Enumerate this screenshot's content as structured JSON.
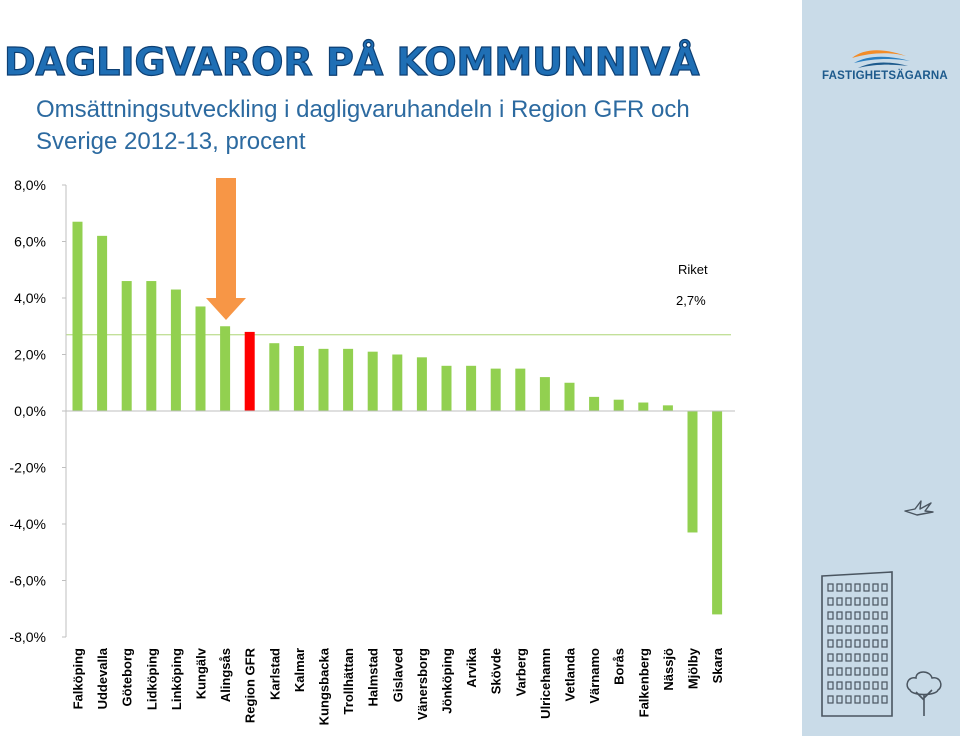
{
  "header": {
    "title": "DAGLIGVAROR PÅ KOMMUNNIVÅ",
    "subtitle": "Omsättningsutveckling i dagligvaruhandeln i Region GFR och Sverige 2012-13, procent"
  },
  "brand": {
    "name": "FASTIGHETSÄGARNA",
    "logo_icon": "wave-logo-icon"
  },
  "decor": [
    "bird-icon",
    "building-icon",
    "tree-icon"
  ],
  "colors": {
    "bar": "#92d050",
    "highlight": "#ff0000",
    "arrow": "#f79646",
    "reference_line": "#c3e09a",
    "panel": "#c9dbe8",
    "title": "#1f6fb5",
    "subtitle": "#2c6aa0"
  },
  "chart_data": {
    "type": "bar",
    "categories": [
      "Falköping",
      "Uddevalla",
      "Göteborg",
      "Lidköping",
      "Linköping",
      "Kungälv",
      "Alingsås",
      "Region GFR",
      "Karlstad",
      "Kalmar",
      "Kungsbacka",
      "Trollhättan",
      "Halmstad",
      "Gislaved",
      "Vänersborg",
      "Jönköping",
      "Arvika",
      "Skövde",
      "Varberg",
      "Ulricehamn",
      "Vetlanda",
      "Värnamo",
      "Borås",
      "Falkenberg",
      "Nässjö",
      "Mjölby",
      "Skara"
    ],
    "values": [
      6.7,
      6.2,
      4.6,
      4.6,
      4.3,
      3.7,
      3.0,
      2.8,
      2.4,
      2.3,
      2.2,
      2.2,
      2.1,
      2.0,
      1.9,
      1.6,
      1.6,
      1.5,
      1.5,
      1.2,
      1.0,
      0.5,
      0.4,
      0.3,
      0.2,
      -4.3,
      -7.2
    ],
    "highlight_category": "Region GFR",
    "reference": {
      "label": "Riket",
      "value_label": "2,7%",
      "value": 2.7
    },
    "ylim": [
      -8.0,
      8.0
    ],
    "yticks": [
      8.0,
      6.0,
      4.0,
      2.0,
      0.0,
      -2.0,
      -4.0,
      -6.0,
      -8.0
    ],
    "ytick_labels": [
      "8,0%",
      "6,0%",
      "4,0%",
      "2,0%",
      "0,0%",
      "-2,0%",
      "-4,0%",
      "-6,0%",
      "-8,0%"
    ],
    "xlabel": "",
    "ylabel": "",
    "grid": false,
    "legend": "none"
  }
}
